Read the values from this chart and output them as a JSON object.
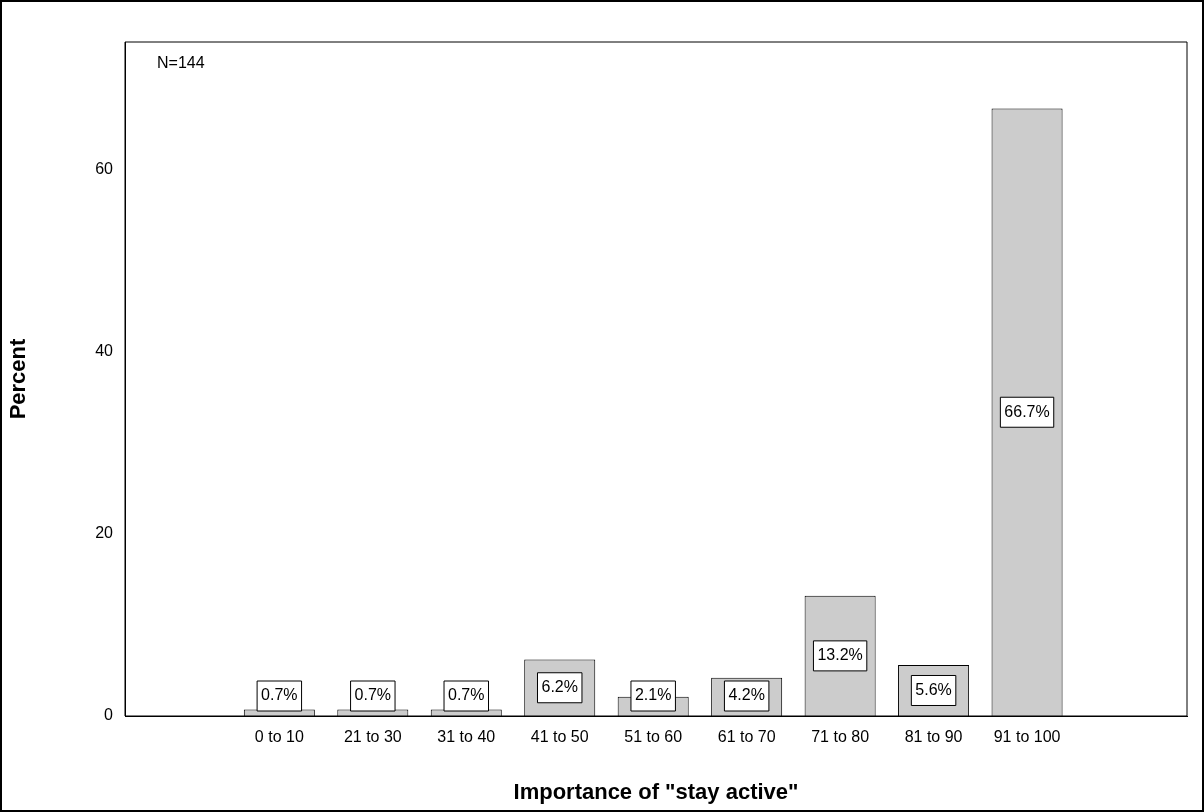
{
  "chart_data": {
    "type": "bar",
    "xlabel": "Importance of \"stay active\"",
    "ylabel": "Percent",
    "categories": [
      "0 to 10",
      "21 to 30",
      "31 to 40",
      "41 to 50",
      "51 to 60",
      "61 to 70",
      "71 to 80",
      "81 to 90",
      "91 to 100"
    ],
    "values": [
      0.7,
      0.7,
      0.7,
      6.2,
      2.1,
      4.2,
      13.2,
      5.6,
      66.7
    ],
    "value_labels": [
      "0.7%",
      "0.7%",
      "0.7%",
      "6.2%",
      "2.1%",
      "4.2%",
      "13.2%",
      "5.6%",
      "66.7%"
    ],
    "color": "#cccccc",
    "ylim": [
      0,
      74
    ],
    "yticks": [
      0,
      20,
      40,
      60
    ],
    "grid": false,
    "legend": false,
    "annotations": [
      "N=144"
    ]
  }
}
